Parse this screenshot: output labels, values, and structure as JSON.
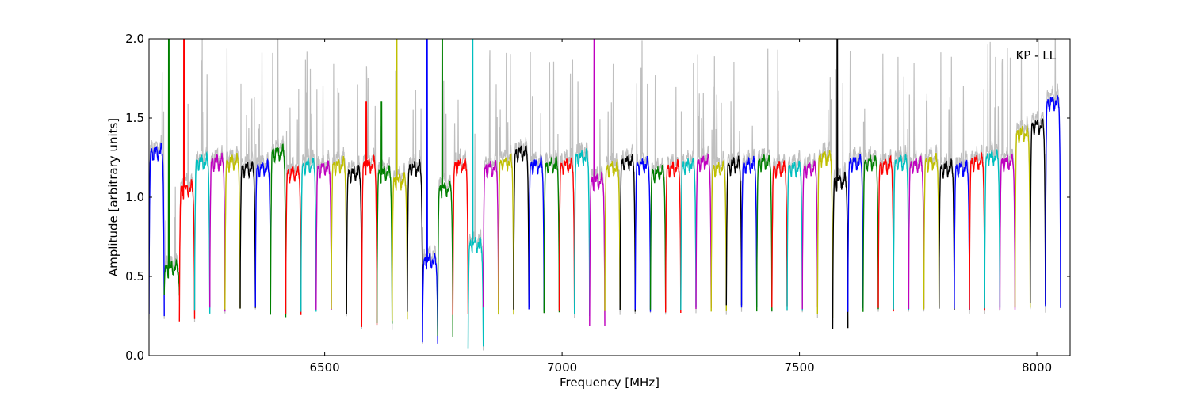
{
  "chart_data": {
    "type": "line",
    "title": "",
    "annotation": "KP - LL",
    "xlabel": "Frequency [MHz]",
    "ylabel": "Amplitude [arbitrary units]",
    "xlim": [
      6130,
      8070
    ],
    "ylim": [
      0.0,
      2.0
    ],
    "xticks": [
      6500,
      7000,
      7500,
      8000
    ],
    "xtick_labels": [
      "6500",
      "7000",
      "7500",
      "8000"
    ],
    "yticks": [
      0.0,
      0.5,
      1.0,
      1.5,
      2.0
    ],
    "ytick_labels": [
      "0.0",
      "0.5",
      "1.0",
      "1.5",
      "2.0"
    ],
    "grid": false,
    "legend": "none",
    "channel_width_mhz": 32,
    "channel_colors_cycle": [
      "#0000ff",
      "#008000",
      "#ff0000",
      "#00bfbf",
      "#bf00bf",
      "#bfbf00",
      "#000000"
    ],
    "background_series_color": "#bfbfbf",
    "channels": [
      {
        "start": 6130,
        "level": 1.28,
        "min": 0.26,
        "color": "#0000ff"
      },
      {
        "start": 6162,
        "level": 0.55,
        "min": 0.37,
        "color": "#008000",
        "spike": 2.0
      },
      {
        "start": 6194,
        "level": 1.05,
        "min": 0.23,
        "color": "#ff0000",
        "spike": 2.0
      },
      {
        "start": 6226,
        "level": 1.22,
        "min": 0.28,
        "color": "#00bfbf"
      },
      {
        "start": 6258,
        "level": 1.22,
        "min": 0.29,
        "color": "#bf00bf"
      },
      {
        "start": 6290,
        "level": 1.22,
        "min": 0.29,
        "color": "#bfbf00"
      },
      {
        "start": 6322,
        "level": 1.18,
        "min": 0.3,
        "color": "#000000"
      },
      {
        "start": 6354,
        "level": 1.18,
        "min": 0.3,
        "color": "#0000ff"
      },
      {
        "start": 6386,
        "level": 1.28,
        "min": 0.25,
        "color": "#008000"
      },
      {
        "start": 6418,
        "level": 1.15,
        "min": 0.27,
        "color": "#ff0000"
      },
      {
        "start": 6450,
        "level": 1.2,
        "min": 0.28,
        "color": "#00bfbf"
      },
      {
        "start": 6482,
        "level": 1.18,
        "min": 0.3,
        "color": "#bf00bf"
      },
      {
        "start": 6514,
        "level": 1.2,
        "min": 0.3,
        "color": "#bfbf00"
      },
      {
        "start": 6546,
        "level": 1.15,
        "min": 0.26,
        "color": "#000000"
      },
      {
        "start": 6578,
        "level": 1.2,
        "min": 0.19,
        "color": "#ff0000",
        "spike": 1.55
      },
      {
        "start": 6610,
        "level": 1.15,
        "min": 0.19,
        "color": "#008000",
        "spike": 1.55
      },
      {
        "start": 6642,
        "level": 1.1,
        "min": 0.23,
        "color": "#bfbf00",
        "spike": 2.0
      },
      {
        "start": 6674,
        "level": 1.18,
        "min": 0.27,
        "color": "#000000"
      },
      {
        "start": 6706,
        "level": 0.6,
        "min": 0.08,
        "color": "#0000ff",
        "spike": 2.0
      },
      {
        "start": 6738,
        "level": 1.05,
        "min": 0.11,
        "color": "#008000",
        "spike": 2.0
      },
      {
        "start": 6770,
        "level": 1.2,
        "min": 0.26,
        "color": "#ff0000"
      },
      {
        "start": 6802,
        "level": 0.7,
        "min": 0.05,
        "color": "#00bfbf",
        "spike": 2.0
      },
      {
        "start": 6834,
        "level": 1.18,
        "min": 0.29,
        "color": "#bf00bf"
      },
      {
        "start": 6866,
        "level": 1.22,
        "min": 0.27,
        "color": "#bfbf00"
      },
      {
        "start": 6898,
        "level": 1.28,
        "min": 0.3,
        "color": "#000000"
      },
      {
        "start": 6930,
        "level": 1.2,
        "min": 0.29,
        "color": "#0000ff"
      },
      {
        "start": 6962,
        "level": 1.2,
        "min": 0.28,
        "color": "#008000"
      },
      {
        "start": 6994,
        "level": 1.2,
        "min": 0.28,
        "color": "#ff0000"
      },
      {
        "start": 7026,
        "level": 1.25,
        "min": 0.26,
        "color": "#00bfbf"
      },
      {
        "start": 7058,
        "level": 1.1,
        "min": 0.2,
        "color": "#bf00bf",
        "spike": 2.0
      },
      {
        "start": 7090,
        "level": 1.18,
        "min": 0.28,
        "color": "#bfbf00"
      },
      {
        "start": 7122,
        "level": 1.22,
        "min": 0.29,
        "color": "#000000"
      },
      {
        "start": 7154,
        "level": 1.2,
        "min": 0.29,
        "color": "#0000ff"
      },
      {
        "start": 7186,
        "level": 1.15,
        "min": 0.28,
        "color": "#008000"
      },
      {
        "start": 7218,
        "level": 1.18,
        "min": 0.27,
        "color": "#ff0000"
      },
      {
        "start": 7250,
        "level": 1.2,
        "min": 0.29,
        "color": "#00bfbf"
      },
      {
        "start": 7282,
        "level": 1.22,
        "min": 0.29,
        "color": "#bf00bf"
      },
      {
        "start": 7314,
        "level": 1.18,
        "min": 0.28,
        "color": "#bfbf00"
      },
      {
        "start": 7346,
        "level": 1.2,
        "min": 0.31,
        "color": "#000000"
      },
      {
        "start": 7378,
        "level": 1.2,
        "min": 0.29,
        "color": "#0000ff"
      },
      {
        "start": 7410,
        "level": 1.22,
        "min": 0.28,
        "color": "#008000"
      },
      {
        "start": 7442,
        "level": 1.18,
        "min": 0.3,
        "color": "#ff0000"
      },
      {
        "start": 7474,
        "level": 1.18,
        "min": 0.29,
        "color": "#00bfbf"
      },
      {
        "start": 7506,
        "level": 1.18,
        "min": 0.3,
        "color": "#bf00bf"
      },
      {
        "start": 7538,
        "level": 1.25,
        "min": 0.25,
        "color": "#bfbf00"
      },
      {
        "start": 7570,
        "level": 1.1,
        "min": 0.18,
        "color": "#000000",
        "spike": 2.0
      },
      {
        "start": 7602,
        "level": 1.22,
        "min": 0.29,
        "color": "#0000ff"
      },
      {
        "start": 7634,
        "level": 1.22,
        "min": 0.29,
        "color": "#008000"
      },
      {
        "start": 7666,
        "level": 1.2,
        "min": 0.29,
        "color": "#ff0000"
      },
      {
        "start": 7698,
        "level": 1.22,
        "min": 0.29,
        "color": "#00bfbf"
      },
      {
        "start": 7730,
        "level": 1.2,
        "min": 0.3,
        "color": "#bf00bf"
      },
      {
        "start": 7762,
        "level": 1.22,
        "min": 0.3,
        "color": "#bfbf00"
      },
      {
        "start": 7794,
        "level": 1.18,
        "min": 0.3,
        "color": "#000000"
      },
      {
        "start": 7826,
        "level": 1.18,
        "min": 0.29,
        "color": "#0000ff"
      },
      {
        "start": 7858,
        "level": 1.22,
        "min": 0.29,
        "color": "#ff0000"
      },
      {
        "start": 7890,
        "level": 1.25,
        "min": 0.3,
        "color": "#00bfbf"
      },
      {
        "start": 7922,
        "level": 1.22,
        "min": 0.28,
        "color": "#bf00bf"
      },
      {
        "start": 7954,
        "level": 1.4,
        "min": 0.3,
        "color": "#bfbf00"
      },
      {
        "start": 7986,
        "level": 1.45,
        "min": 0.32,
        "color": "#000000"
      },
      {
        "start": 8018,
        "level": 1.6,
        "min": 0.3,
        "color": "#0000ff"
      }
    ]
  }
}
